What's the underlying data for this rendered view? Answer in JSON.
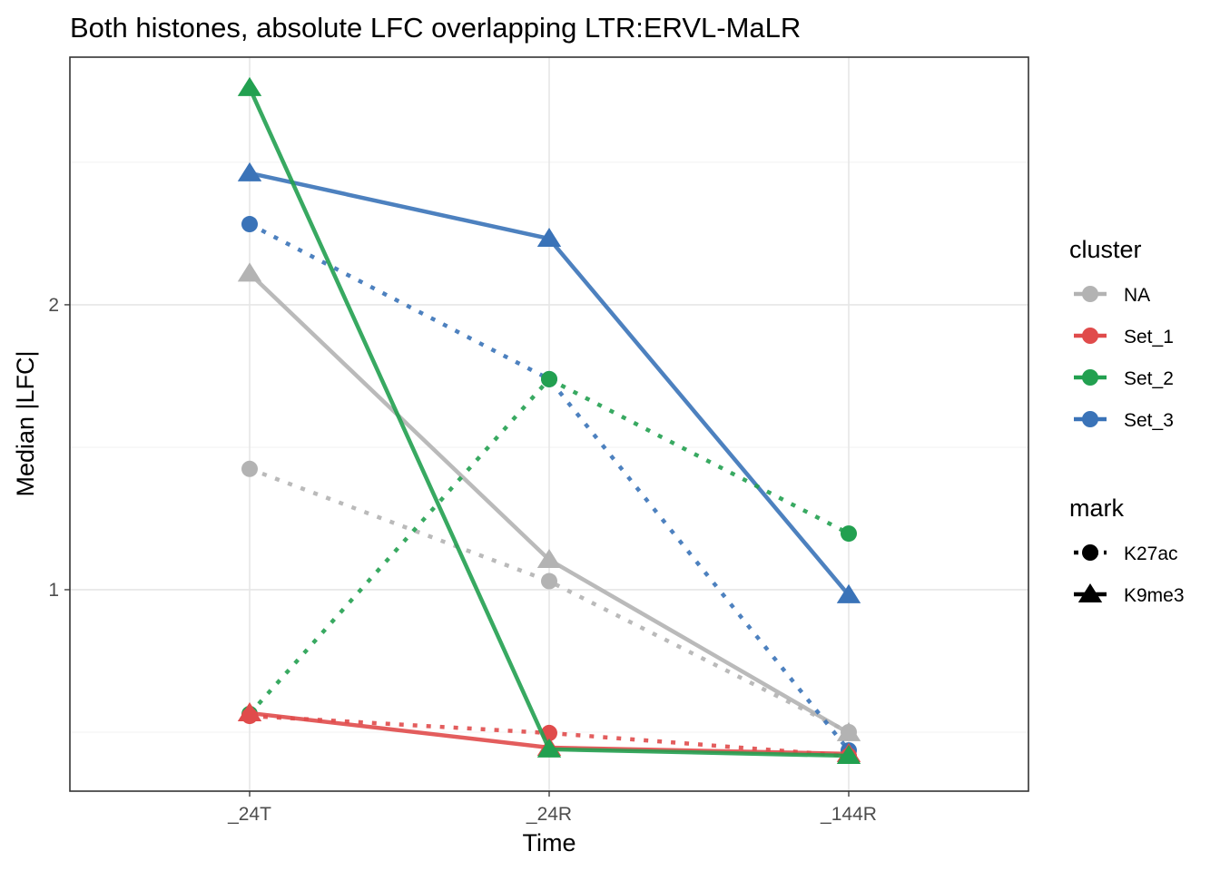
{
  "chart_data": {
    "type": "line",
    "title": "Both histones, absolute LFC overlapping LTR:ERVL-MaLR",
    "xlabel": "Time",
    "ylabel": "Median |LFC|",
    "categories": [
      "_24T",
      "_24R",
      "_144R"
    ],
    "ylim": [
      0.293,
      2.869
    ],
    "yticks": [
      1,
      2
    ],
    "ytick_labels": [
      "1",
      "2"
    ],
    "grid": true,
    "legend_position": "right",
    "legend_cluster_title": "cluster",
    "legend_mark_title": "mark",
    "clusters": [
      {
        "name": "NA",
        "color": "#B3B3B3"
      },
      {
        "name": "Set_1",
        "color": "#E04B4B"
      },
      {
        "name": "Set_2",
        "color": "#22A050"
      },
      {
        "name": "Set_3",
        "color": "#3A73B8"
      }
    ],
    "marks": [
      {
        "name": "K27ac",
        "line": "dotted",
        "shape": "circle"
      },
      {
        "name": "K9me3",
        "line": "solid",
        "shape": "triangle"
      }
    ],
    "series": [
      {
        "cluster": "NA",
        "mark": "K9me3",
        "values": [
          2.11,
          1.105,
          0.497
        ]
      },
      {
        "cluster": "NA",
        "mark": "K27ac",
        "values": [
          1.424,
          1.03,
          0.5
        ]
      },
      {
        "cluster": "Set_3",
        "mark": "K9me3",
        "values": [
          2.462,
          2.232,
          0.981
        ]
      },
      {
        "cluster": "Set_3",
        "mark": "K27ac",
        "values": [
          2.283,
          1.739,
          0.436
        ]
      },
      {
        "cluster": "Set_2",
        "mark": "K27ac",
        "values": [
          0.564,
          1.739,
          1.197
        ]
      },
      {
        "cluster": "Set_1",
        "mark": "K27ac",
        "values": [
          0.557,
          0.497,
          0.417
        ]
      },
      {
        "cluster": "Set_1",
        "mark": "K9me3",
        "values": [
          0.567,
          0.446,
          0.424
        ]
      },
      {
        "cluster": "Set_2",
        "mark": "K9me3",
        "values": [
          2.761,
          0.44,
          0.417
        ]
      }
    ]
  }
}
